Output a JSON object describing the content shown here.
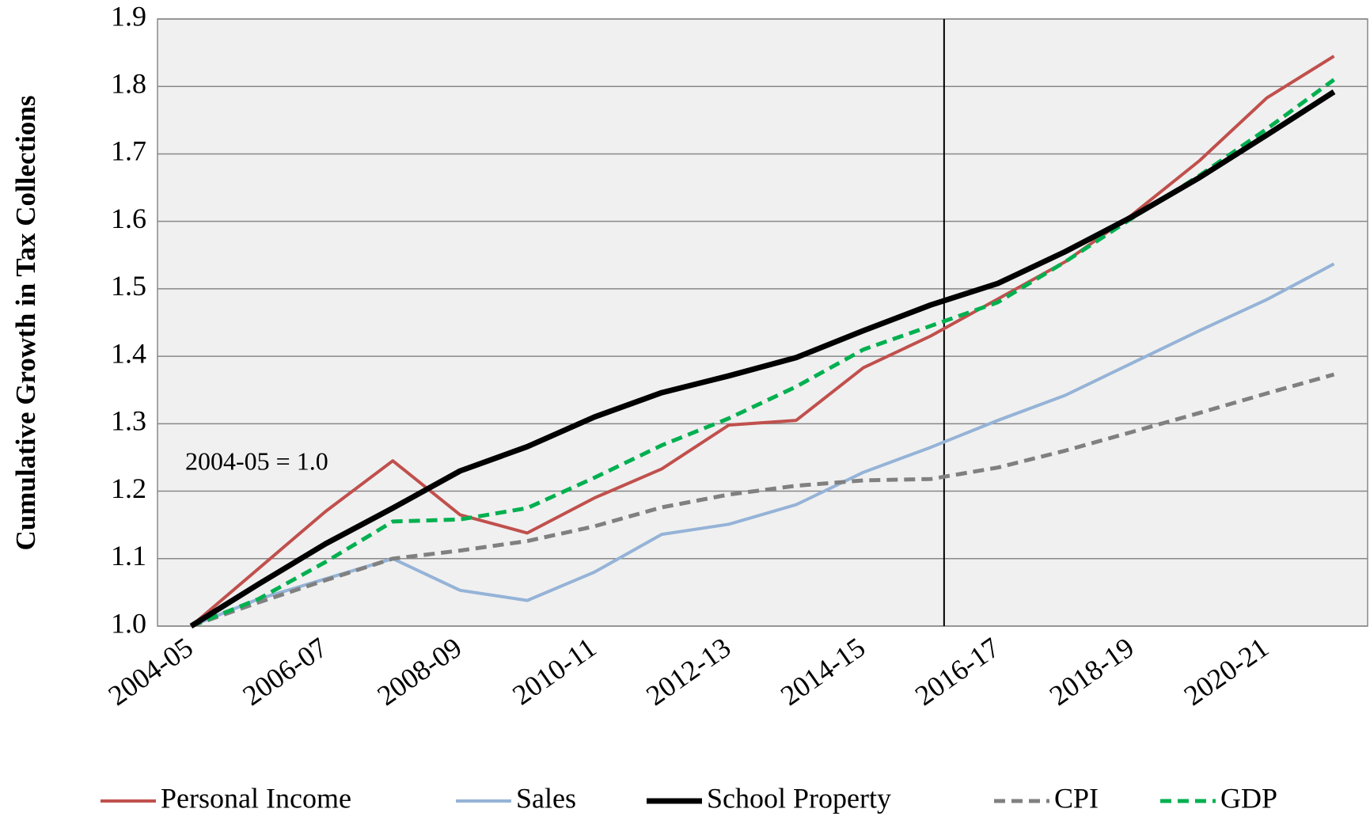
{
  "chart_data": {
    "type": "line",
    "y_label": "Cumulative Growth in Tax Collections",
    "annotation": "2004-05 = 1.0",
    "categories": [
      "2004-05",
      null,
      "2006-07",
      null,
      "2008-09",
      null,
      "2010-11",
      null,
      "2012-13",
      null,
      "2014-15",
      null,
      "2016-17",
      null,
      "2018-19",
      null,
      "2020-21",
      null
    ],
    "series": [
      {
        "name": "Personal Income",
        "color": "#c0504d",
        "line_style": "solid",
        "values": [
          1.0,
          1.085,
          1.17,
          1.245,
          1.165,
          1.138,
          1.19,
          1.233,
          1.298,
          1.305,
          1.383,
          1.43,
          1.485,
          1.54,
          1.61,
          1.69,
          1.783,
          1.845
        ]
      },
      {
        "name": "Sales",
        "color": "#95b3d7",
        "line_style": "solid",
        "values": [
          1.0,
          1.04,
          1.07,
          1.1,
          1.053,
          1.038,
          1.08,
          1.136,
          1.151,
          1.18,
          1.228,
          1.265,
          1.305,
          1.342,
          1.39,
          1.438,
          1.484,
          1.537
        ]
      },
      {
        "name": "School Property",
        "color": "#000000",
        "line_style": "thick",
        "values": [
          1.0,
          1.062,
          1.122,
          1.175,
          1.23,
          1.266,
          1.31,
          1.346,
          1.371,
          1.398,
          1.438,
          1.476,
          1.508,
          1.555,
          1.607,
          1.665,
          1.728,
          1.792
        ]
      },
      {
        "name": "CPI",
        "color": "#808080",
        "line_style": "dashed",
        "values": [
          1.0,
          1.035,
          1.068,
          1.1,
          1.112,
          1.126,
          1.148,
          1.176,
          1.195,
          1.208,
          1.216,
          1.218,
          1.235,
          1.26,
          1.288,
          1.316,
          1.345,
          1.373
        ]
      },
      {
        "name": "GDP",
        "color": "#00b050",
        "line_style": "dashed",
        "values": [
          1.0,
          1.04,
          1.095,
          1.155,
          1.158,
          1.175,
          1.22,
          1.268,
          1.308,
          1.355,
          1.41,
          1.445,
          1.48,
          1.54,
          1.605,
          1.668,
          1.737,
          1.81
        ]
      }
    ],
    "ylim": [
      1.0,
      1.9
    ],
    "yticks": [
      {
        "value": 1.0,
        "label": "1.0"
      },
      1.1,
      1.2,
      1.3,
      1.4,
      1.5,
      1.6,
      1.7,
      1.8,
      1.9
    ],
    "grid": true,
    "legend": "bottom"
  }
}
